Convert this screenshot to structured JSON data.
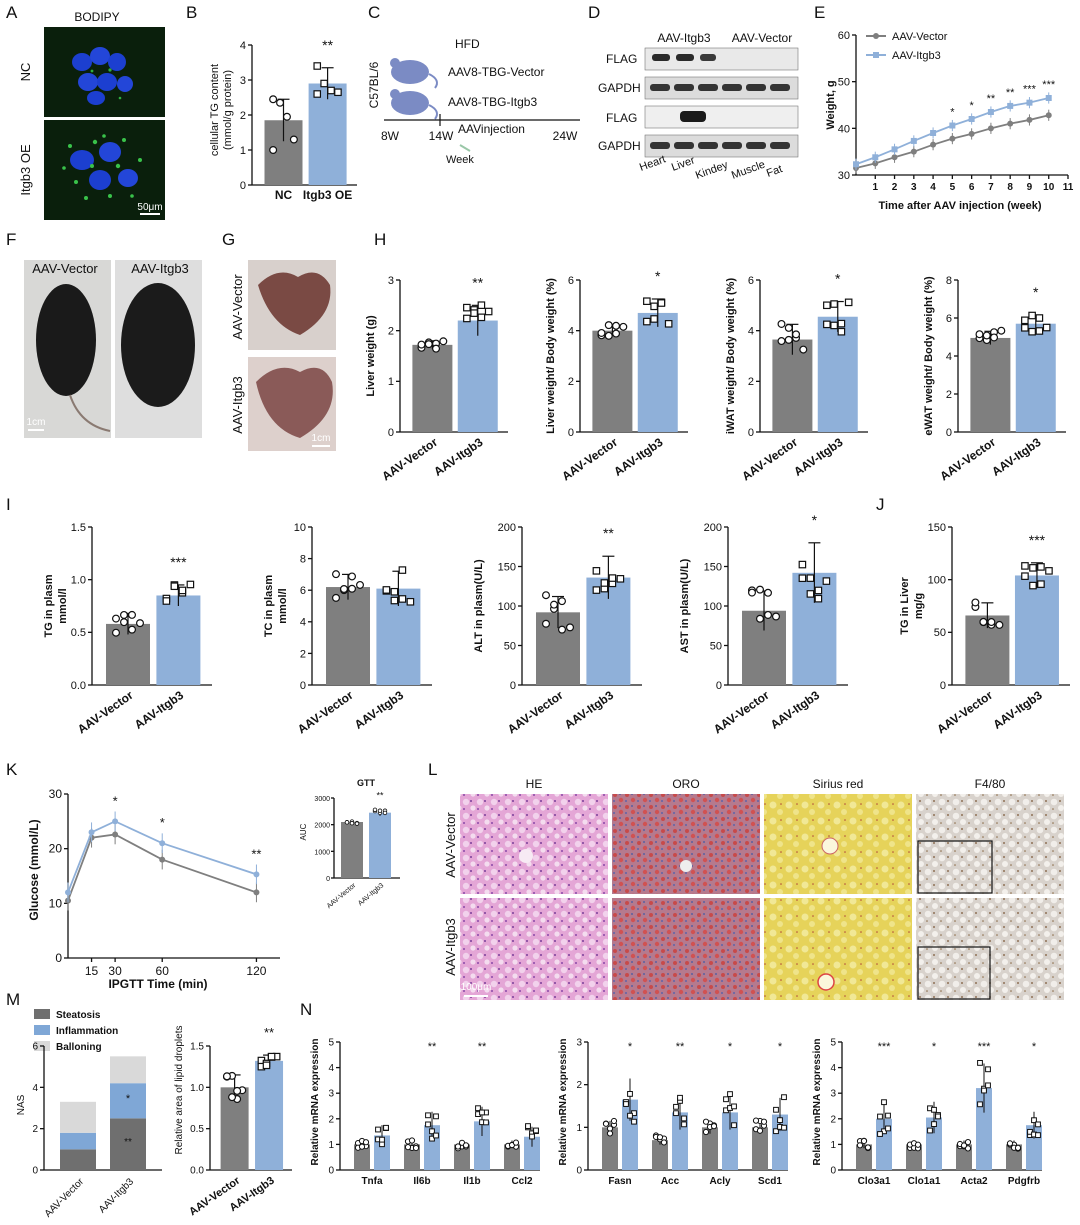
{
  "colors": {
    "vector": "#7f7f7f",
    "itgb3": "#8fb0d9",
    "steatosis": "#6f6f6f",
    "inflammation": "#7fa7d6",
    "ballooning": "#d9d9d9",
    "bodipy_blue": "#1c3fd0",
    "bodipy_green": "#2fae3f"
  },
  "panel_letters": [
    "A",
    "B",
    "C",
    "D",
    "E",
    "F",
    "G",
    "H",
    "I",
    "J",
    "K",
    "L",
    "M",
    "N"
  ],
  "A": {
    "title": "BODIPY",
    "rows": [
      "NC",
      "Itgb3 OE"
    ],
    "scale": "50μm"
  },
  "B": {
    "ylabel1": "cellular TG content",
    "ylabel2": "(mmol/g protein)",
    "groups": [
      "NC",
      "Itgb3 OE"
    ],
    "sig": "**",
    "chart_data": {
      "type": "bar",
      "categories": [
        "NC",
        "Itgb3 OE"
      ],
      "values": [
        1.85,
        2.9
      ],
      "errors": [
        0.6,
        0.45
      ],
      "ylim": [
        0,
        4
      ],
      "yticks": [
        0,
        1,
        2,
        3,
        4
      ],
      "points": [
        [
          2.45,
          2.35,
          1.95,
          1.3,
          1.0
        ],
        [
          3.4,
          2.9,
          2.7,
          2.65,
          2.6
        ]
      ]
    }
  },
  "C": {
    "strain": "C57BL/6",
    "diet": "HFD",
    "groups": [
      "AAV8-TBG-Vector",
      "AAV8-TBG-Itgb3"
    ],
    "timeline": [
      "8W",
      "14W",
      "24W"
    ],
    "injection": "AAVinjection",
    "week": "Week"
  },
  "D": {
    "headers": [
      "AAV-Itgb3",
      "AAV-Vector"
    ],
    "rows": [
      "FLAG",
      "GAPDH",
      "FLAG",
      "GAPDH"
    ],
    "tissues": [
      "Heart",
      "Liver",
      "Kindey",
      "Muscle",
      "Fat"
    ]
  },
  "E": {
    "ylabel": "Weight, g",
    "xlabel": "Time after AAV injection (week)",
    "legend": [
      "AAV-Vector",
      "AAV-Itgb3"
    ],
    "sig": [
      "*",
      "*",
      "**",
      "**",
      "***",
      "***"
    ],
    "chart_data": {
      "type": "line",
      "x": [
        0,
        1,
        2,
        3,
        4,
        5,
        6,
        7,
        8,
        9,
        10
      ],
      "xlim": [
        0,
        11
      ],
      "ylim": [
        30,
        60
      ],
      "yticks": [
        30,
        40,
        50,
        60
      ],
      "series": [
        {
          "name": "AAV-Vector",
          "values": [
            31.5,
            32.5,
            33.8,
            35.0,
            36.5,
            37.8,
            38.8,
            40.0,
            41.0,
            41.8,
            42.8
          ]
        },
        {
          "name": "AAV-Itgb3",
          "values": [
            32.3,
            33.8,
            35.5,
            37.3,
            39.0,
            40.6,
            42.0,
            43.5,
            44.8,
            45.5,
            46.5
          ]
        }
      ]
    }
  },
  "F": {
    "labels": [
      "AAV-Vector",
      "AAV-Itgb3"
    ],
    "scale": "1cm"
  },
  "G": {
    "labels": [
      "AAV-Vector",
      "AAV-Itgb3"
    ],
    "scale": "1cm"
  },
  "H": [
    {
      "ylabel": "Liver weight (g)",
      "sig": "**",
      "chart_data": {
        "type": "bar",
        "categories": [
          "AAV-Vector",
          "AAV-Itgb3"
        ],
        "values": [
          1.72,
          2.2
        ],
        "errors": [
          0.08,
          0.3
        ],
        "ylim": [
          0,
          3
        ],
        "yticks": [
          0,
          1,
          2,
          3
        ]
      }
    },
    {
      "ylabel": "Liver weight/ Body weight (%)",
      "sig": "*",
      "chart_data": {
        "type": "bar",
        "categories": [
          "AAV-Vector",
          "AAV-Itgb3"
        ],
        "values": [
          4.0,
          4.7
        ],
        "errors": [
          0.2,
          0.55
        ],
        "ylim": [
          0,
          6
        ],
        "yticks": [
          0,
          2,
          4,
          6
        ]
      }
    },
    {
      "ylabel": "iWAT weight/ Body weight (%)",
      "sig": "*",
      "chart_data": {
        "type": "bar",
        "categories": [
          "AAV-Vector",
          "AAV-Itgb3"
        ],
        "values": [
          3.65,
          4.55
        ],
        "errors": [
          0.6,
          0.6
        ],
        "ylim": [
          0,
          6
        ],
        "yticks": [
          0,
          2,
          4,
          6
        ]
      }
    },
    {
      "ylabel": "eWAT weight/ Body weight (%)",
      "sig": "*",
      "chart_data": {
        "type": "bar",
        "categories": [
          "AAV-Vector",
          "AAV-Itgb3"
        ],
        "values": [
          4.95,
          5.7
        ],
        "errors": [
          0.35,
          0.45
        ],
        "ylim": [
          0,
          8
        ],
        "yticks": [
          0,
          2,
          4,
          6,
          8
        ]
      }
    }
  ],
  "I": [
    {
      "ylabel1": "TG in plasm",
      "ylabel2": "mmol/l",
      "sig": "***",
      "chart_data": {
        "type": "bar",
        "categories": [
          "AAV-Vector",
          "AAV-Itgb3"
        ],
        "values": [
          0.58,
          0.85
        ],
        "errors": [
          0.1,
          0.1
        ],
        "ylim": [
          0,
          1.5
        ],
        "yticks": [
          "0.0",
          "0.5",
          "1.0",
          "1.5"
        ]
      }
    },
    {
      "ylabel1": "TC in plasm",
      "ylabel2": "mmol/l",
      "sig": "",
      "chart_data": {
        "type": "bar",
        "categories": [
          "AAV-Vector",
          "AAV-Itgb3"
        ],
        "values": [
          6.2,
          6.1
        ],
        "errors": [
          0.8,
          1.1
        ],
        "ylim": [
          0,
          10
        ],
        "yticks": [
          0,
          2,
          4,
          6,
          8,
          10
        ]
      }
    },
    {
      "ylabel1": "ALT in plasm(U/L)",
      "ylabel2": "",
      "sig": "**",
      "chart_data": {
        "type": "bar",
        "categories": [
          "AAV-Vector",
          "AAV-Itgb3"
        ],
        "values": [
          92,
          136
        ],
        "errors": [
          20,
          27
        ],
        "ylim": [
          0,
          200
        ],
        "yticks": [
          0,
          50,
          100,
          150,
          200
        ]
      }
    },
    {
      "ylabel1": "AST in plasm(U/L)",
      "ylabel2": "",
      "sig": "*",
      "chart_data": {
        "type": "bar",
        "categories": [
          "AAV-Vector",
          "AAV-Itgb3"
        ],
        "values": [
          94,
          142
        ],
        "errors": [
          25,
          38
        ],
        "ylim": [
          0,
          200
        ],
        "yticks": [
          0,
          50,
          100,
          150,
          200
        ]
      }
    }
  ],
  "J": {
    "ylabel1": "TG in Liver",
    "ylabel2": "mg/g",
    "sig": "***",
    "chart_data": {
      "type": "bar",
      "categories": [
        "AAV-Vector",
        "AAV-Itgb3"
      ],
      "values": [
        66,
        104
      ],
      "errors": [
        12,
        12
      ],
      "ylim": [
        0,
        150
      ],
      "yticks": [
        0,
        50,
        100,
        150
      ]
    }
  },
  "K": {
    "ylabel": "Glucose (mmol/L)",
    "xlabel": "IPGTT Time (min)",
    "sig": [
      "*",
      "*",
      "**"
    ],
    "chart_data": {
      "type": "line",
      "x": [
        0,
        15,
        30,
        60,
        120
      ],
      "xticks": [
        15,
        30,
        60,
        120
      ],
      "ylim": [
        0,
        30
      ],
      "yticks": [
        0,
        10,
        20,
        30
      ],
      "series": [
        {
          "name": "AAV-Vector",
          "values": [
            10.5,
            22.0,
            22.6,
            18.0,
            12.0
          ]
        },
        {
          "name": "AAV-Itgb3",
          "values": [
            12.0,
            23.0,
            25.0,
            21.0,
            15.3
          ]
        }
      ]
    },
    "inset": {
      "title": "GTT",
      "ylabel": "AUC",
      "sig": "**",
      "chart_data": {
        "type": "bar",
        "categories": [
          "AAV-Vector",
          "AAV-Itgb3"
        ],
        "values": [
          2100,
          2450
        ],
        "errors": [
          60,
          120
        ],
        "ylim": [
          0,
          3000
        ],
        "yticks": [
          0,
          1000,
          2000,
          3000
        ]
      }
    }
  },
  "L": {
    "columns": [
      "HE",
      "ORO",
      "Sirius red",
      "F4/80"
    ],
    "rows": [
      "AAV-Vector",
      "AAV-Itgb3"
    ],
    "scale": "100μm"
  },
  "M": {
    "legend": [
      "Steatosis",
      "Inflammation",
      "Balloning"
    ],
    "ylabel": "NAS",
    "marks": [
      "*",
      "**"
    ],
    "chart_data": {
      "type": "bar",
      "stacked": true,
      "categories": [
        "AAV-Vector",
        "AAV-Itgb3"
      ],
      "ylim": [
        0,
        6
      ],
      "yticks": [
        0,
        2,
        4,
        6
      ],
      "series": [
        {
          "name": "Steatosis",
          "values": [
            1.0,
            2.5
          ]
        },
        {
          "name": "Inflammation",
          "values": [
            0.8,
            1.7
          ]
        },
        {
          "name": "Balloning",
          "values": [
            1.5,
            1.3
          ]
        }
      ]
    },
    "bar2": {
      "ylabel": "Relative area of lipid droplets",
      "sig": "**",
      "chart_data": {
        "type": "bar",
        "categories": [
          "AAV-Vector",
          "AAV-Itgb3"
        ],
        "values": [
          1.0,
          1.32
        ],
        "errors": [
          0.15,
          0.07
        ],
        "ylim": [
          0,
          1.5
        ],
        "yticks": [
          "0.0",
          "0.5",
          "1.0",
          "1.5"
        ]
      }
    }
  },
  "N": [
    {
      "ylabel": "Relative mRNA  expression",
      "genes": [
        "Tnfa",
        "Il6b",
        "Il1b",
        "Ccl2"
      ],
      "sig": [
        "",
        "**",
        "**",
        ""
      ],
      "ylim": [
        0,
        5
      ],
      "yticks": [
        0,
        1,
        2,
        3,
        4,
        5
      ],
      "chart_data": {
        "type": "bar",
        "series": [
          {
            "name": "AAV-Vector",
            "values": [
              1.0,
              1.0,
              1.0,
              1.0
            ]
          },
          {
            "name": "AAV-Itgb3",
            "values": [
              1.35,
              1.75,
              1.9,
              1.3
            ]
          }
        ]
      }
    },
    {
      "ylabel": "Relative mRNA  expression",
      "genes": [
        "Fasn",
        "Acc",
        "Acly",
        "Scd1"
      ],
      "sig": [
        "*",
        "**",
        "*",
        "*"
      ],
      "ylim": [
        0,
        3
      ],
      "yticks": [
        0,
        1,
        2,
        3
      ],
      "chart_data": {
        "type": "bar",
        "series": [
          {
            "name": "AAV-Vector",
            "values": [
              1.0,
              0.7,
              1.0,
              1.0
            ]
          },
          {
            "name": "AAV-Itgb3",
            "values": [
              1.65,
              1.35,
              1.35,
              1.3
            ]
          }
        ]
      }
    },
    {
      "ylabel": "Relative mRNA  expression",
      "genes": [
        "Clo3a1",
        "Clo1a1",
        "Acta2",
        "Pdgfrb"
      ],
      "sig": [
        "***",
        "*",
        "***",
        "*"
      ],
      "ylim": [
        0,
        5
      ],
      "yticks": [
        0,
        1,
        2,
        3,
        4,
        5
      ],
      "chart_data": {
        "type": "bar",
        "series": [
          {
            "name": "AAV-Vector",
            "values": [
              1.0,
              1.0,
              1.0,
              1.0
            ]
          },
          {
            "name": "AAV-Itgb3",
            "values": [
              2.0,
              2.05,
              3.2,
              1.75
            ]
          }
        ]
      }
    }
  ]
}
